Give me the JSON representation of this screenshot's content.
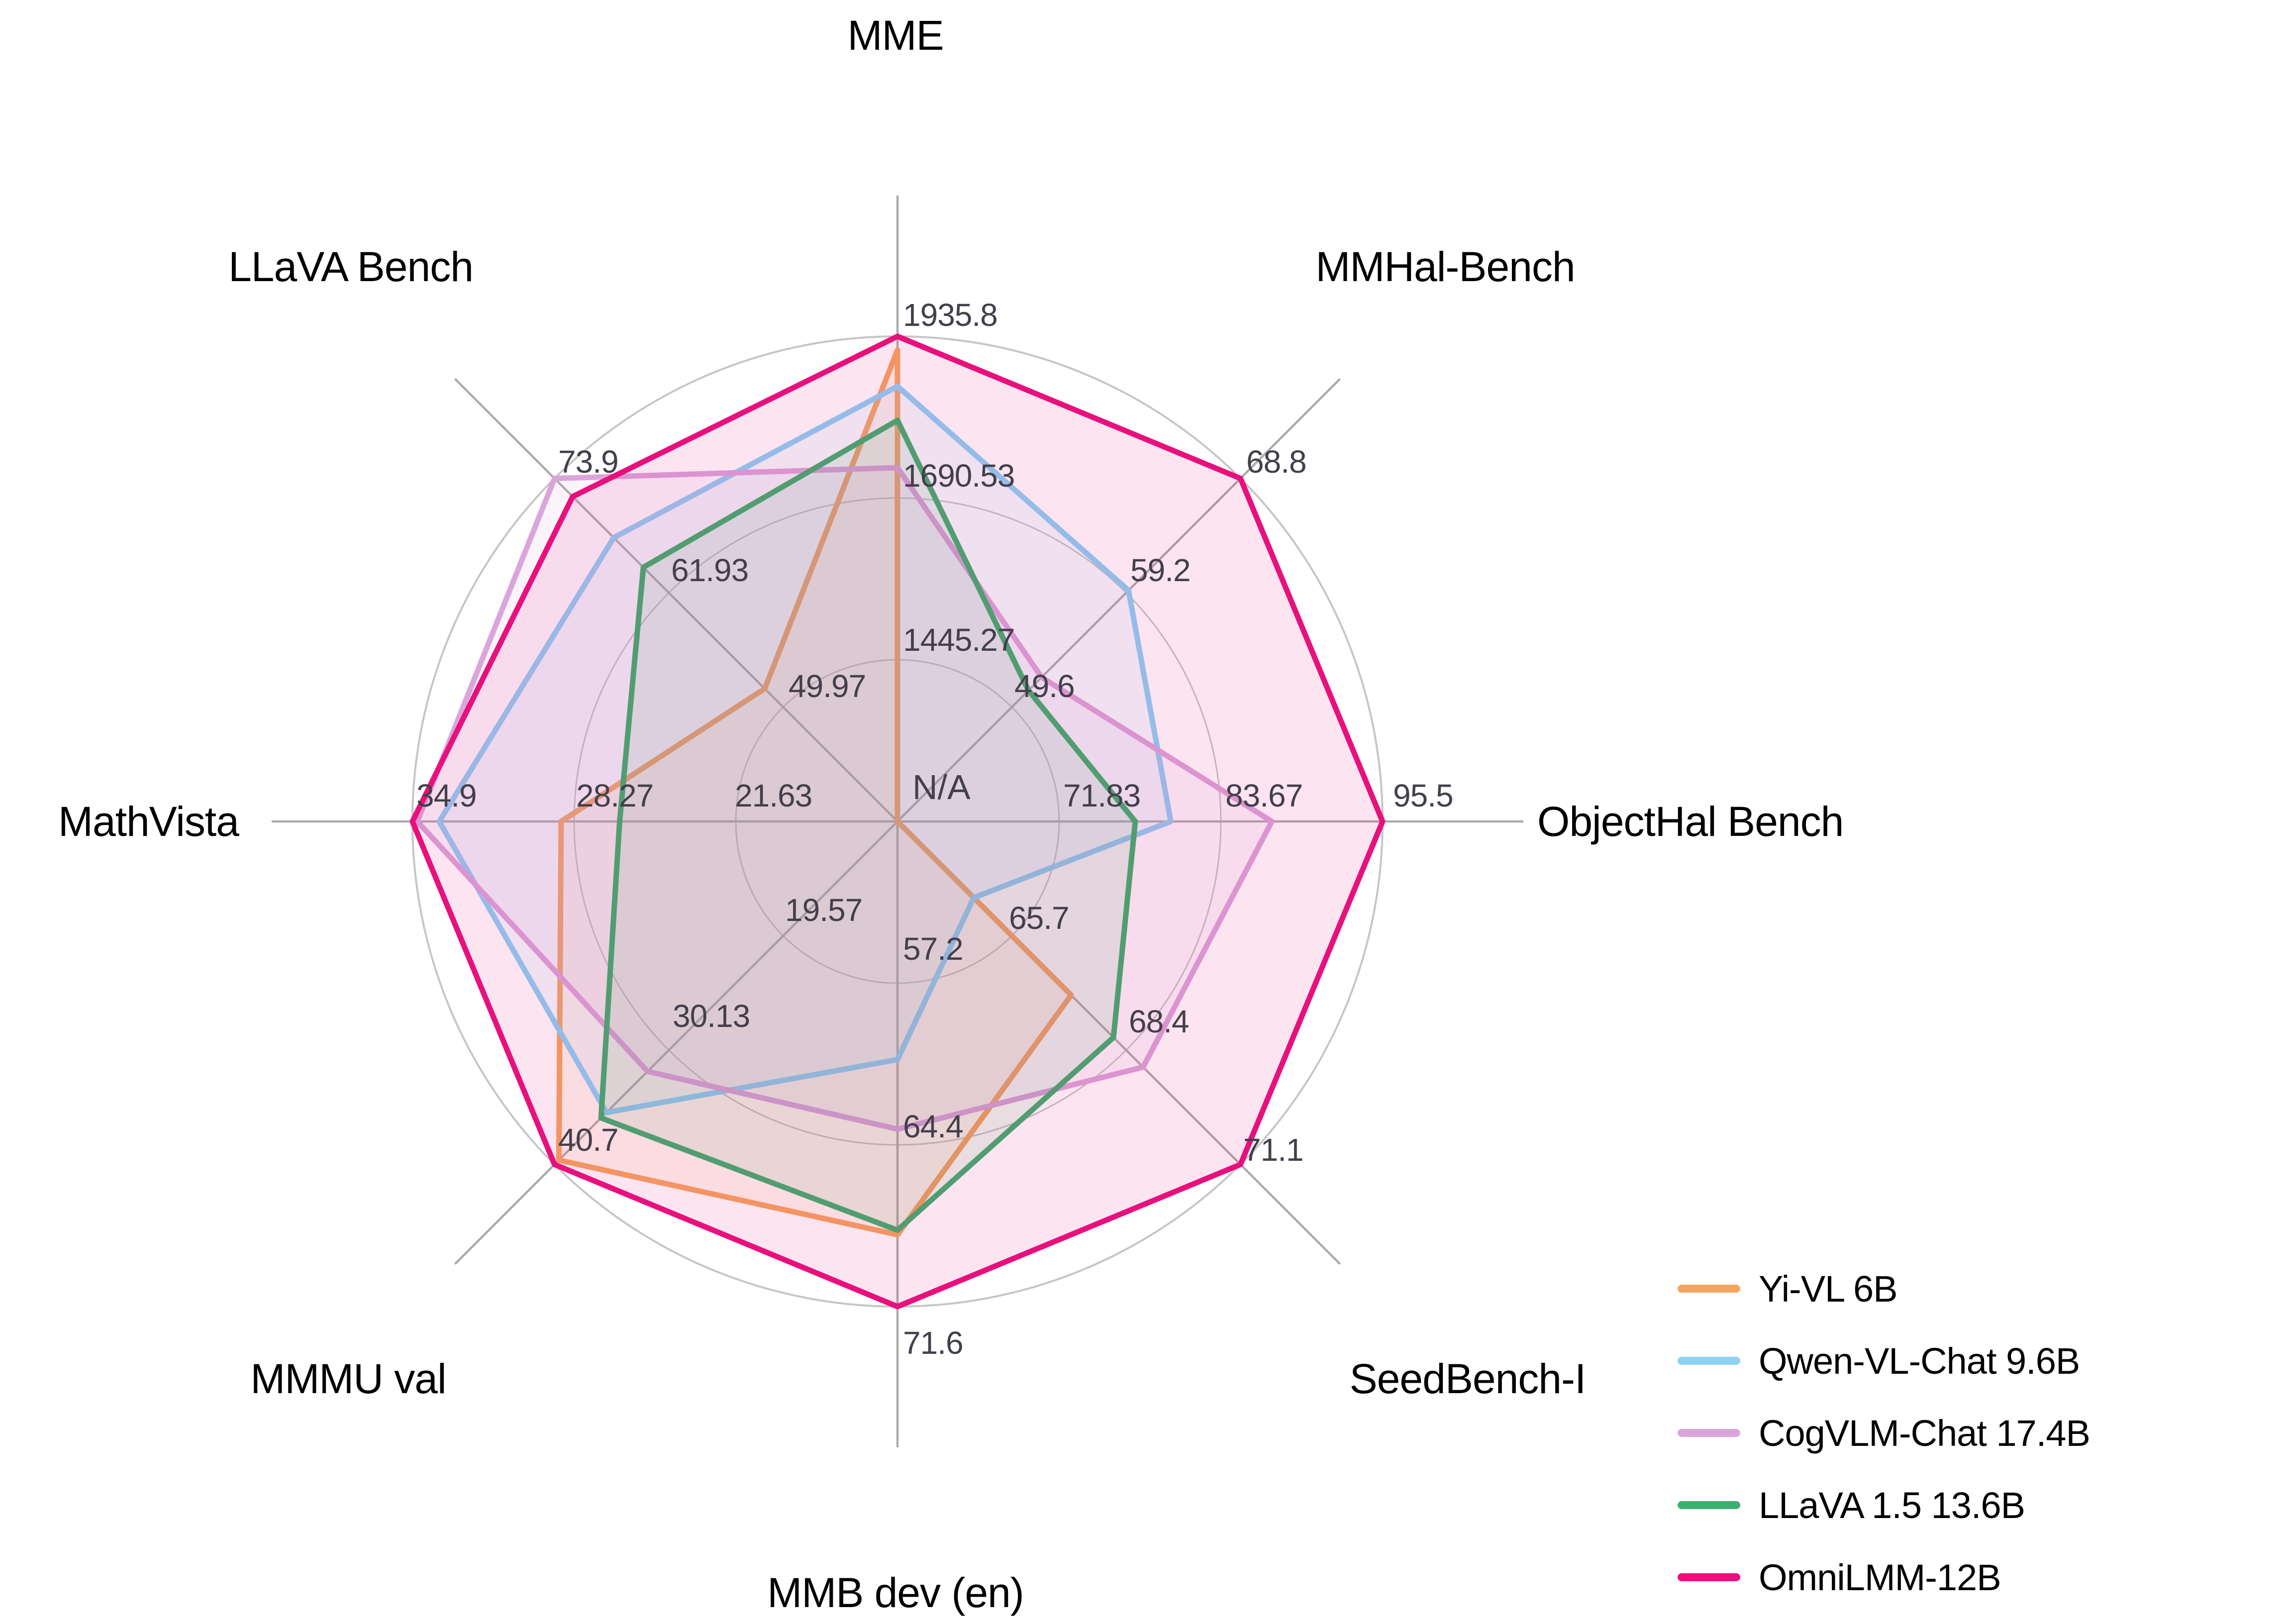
{
  "chart_data": {
    "type": "radar",
    "grid": {
      "rings": 3,
      "shape": "circle",
      "spokes": 8
    },
    "legend_position": "lower right",
    "missing_value_label": "N/A",
    "axes": [
      {
        "label": "MME",
        "min": 1200,
        "max": 1935.8,
        "ticks": [
          "1445.27",
          "1690.53",
          "1935.8"
        ]
      },
      {
        "label": "MMHal-Bench",
        "min": 40,
        "max": 68.8,
        "ticks": [
          "49.6",
          "59.2",
          "68.8"
        ]
      },
      {
        "label": "ObjectHal Bench",
        "min": 60,
        "max": 95.5,
        "ticks": [
          "71.83",
          "83.67",
          "95.5"
        ]
      },
      {
        "label": "SeedBench-I",
        "min": 63,
        "max": 71.1,
        "ticks": [
          "65.7",
          "68.4",
          "71.1"
        ]
      },
      {
        "label": "MMB dev (en)",
        "min": 50,
        "max": 71.6,
        "ticks": [
          "57.2",
          "64.4",
          "71.6"
        ]
      },
      {
        "label": "MMMU val",
        "min": 9,
        "max": 40.7,
        "ticks": [
          "19.57",
          "30.13",
          "40.7"
        ]
      },
      {
        "label": "MathVista",
        "min": 15,
        "max": 34.9,
        "ticks": [
          "21.63",
          "28.27",
          "34.9"
        ]
      },
      {
        "label": "LLaVA Bench",
        "min": 38,
        "max": 73.9,
        "ticks": [
          "49.97",
          "61.93",
          "73.9"
        ]
      }
    ],
    "series": [
      {
        "name": "Yi-VL 6B",
        "color": "#F6A55F",
        "values": [
          1915.1,
          null,
          null,
          67.1,
          68.4,
          40.3,
          28.8,
          51.9
        ]
      },
      {
        "name": "Qwen-VL-Chat 9.6B",
        "color": "#8CD1F6",
        "values": [
          1860.0,
          59.4,
          80.0,
          64.8,
          60.6,
          35.9,
          33.8,
          67.7
        ]
      },
      {
        "name": "CogVLM-Chat 17.4B",
        "color": "#DBA5DC",
        "values": [
          1736.6,
          52.1,
          87.4,
          68.8,
          63.7,
          32.1,
          34.7,
          73.9
        ]
      },
      {
        "name": "LLaVA 1.5 13.6B",
        "color": "#3FAF70",
        "values": [
          1808.4,
          51.0,
          77.4,
          68.1,
          68.2,
          36.4,
          26.4,
          64.6
        ]
      },
      {
        "name": "OmniLMM-12B",
        "color": "#E8107D",
        "values": [
          1935.8,
          68.8,
          95.5,
          71.1,
          71.6,
          40.7,
          34.9,
          72.0
        ]
      }
    ]
  },
  "legend": {
    "entries": [
      {
        "label": "Yi-VL 6B",
        "color": "#F6A55F"
      },
      {
        "label": "Qwen-VL-Chat 9.6B",
        "color": "#8CD1F6"
      },
      {
        "label": "CogVLM-Chat 17.4B",
        "color": "#DBA5DC"
      },
      {
        "label": "LLaVA 1.5 13.6B",
        "color": "#3FAF70"
      },
      {
        "label": "OmniLMM-12B",
        "color": "#E8107D"
      }
    ]
  }
}
